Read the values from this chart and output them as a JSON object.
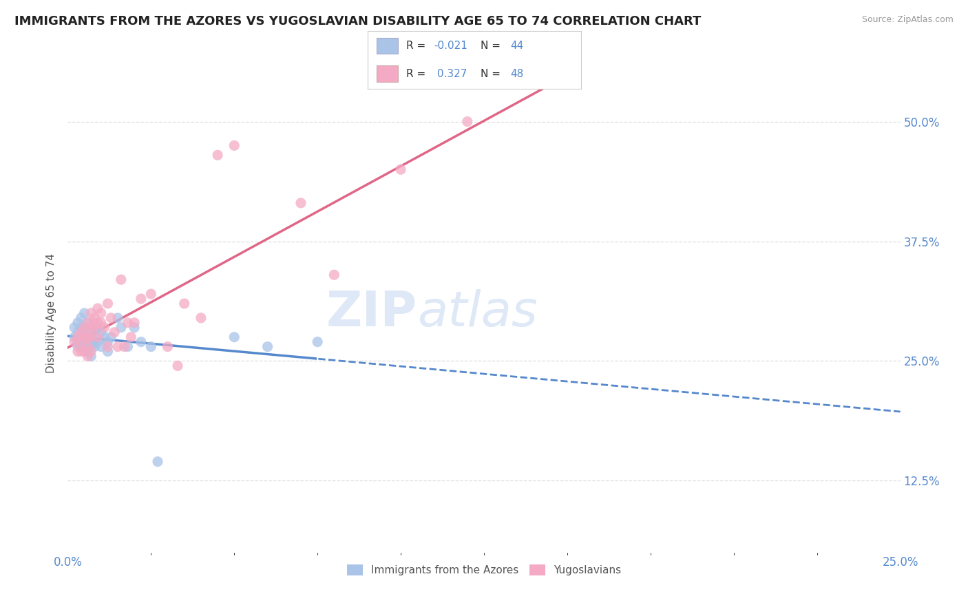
{
  "title": "IMMIGRANTS FROM THE AZORES VS YUGOSLAVIAN DISABILITY AGE 65 TO 74 CORRELATION CHART",
  "source": "Source: ZipAtlas.com",
  "ylabel": "Disability Age 65 to 74",
  "xlim": [
    0.0,
    0.25
  ],
  "ylim": [
    0.05,
    0.55
  ],
  "ytick_values": [
    0.125,
    0.25,
    0.375,
    0.5
  ],
  "xtick_values": [
    0.0,
    0.25
  ],
  "legend_labels": [
    "Immigrants from the Azores",
    "Yugoslavians"
  ],
  "r_blue": -0.021,
  "n_blue": 44,
  "r_pink": 0.327,
  "n_pink": 48,
  "blue_color": "#aac4e8",
  "pink_color": "#f4aac4",
  "blue_line_color": "#5588cc",
  "pink_line_color": "#e06688",
  "watermark_text": "ZIP",
  "watermark_text2": "atlas",
  "background_color": "#ffffff",
  "blue_scatter": [
    [
      0.002,
      0.285
    ],
    [
      0.002,
      0.275
    ],
    [
      0.003,
      0.29
    ],
    [
      0.003,
      0.28
    ],
    [
      0.003,
      0.27
    ],
    [
      0.003,
      0.265
    ],
    [
      0.004,
      0.295
    ],
    [
      0.004,
      0.285
    ],
    [
      0.004,
      0.275
    ],
    [
      0.004,
      0.27
    ],
    [
      0.004,
      0.265
    ],
    [
      0.005,
      0.3
    ],
    [
      0.005,
      0.285
    ],
    [
      0.005,
      0.275
    ],
    [
      0.005,
      0.265
    ],
    [
      0.006,
      0.29
    ],
    [
      0.006,
      0.28
    ],
    [
      0.006,
      0.27
    ],
    [
      0.006,
      0.26
    ],
    [
      0.007,
      0.285
    ],
    [
      0.007,
      0.275
    ],
    [
      0.007,
      0.265
    ],
    [
      0.007,
      0.255
    ],
    [
      0.008,
      0.28
    ],
    [
      0.008,
      0.27
    ],
    [
      0.008,
      0.265
    ],
    [
      0.009,
      0.285
    ],
    [
      0.009,
      0.27
    ],
    [
      0.01,
      0.28
    ],
    [
      0.01,
      0.265
    ],
    [
      0.011,
      0.275
    ],
    [
      0.012,
      0.27
    ],
    [
      0.012,
      0.26
    ],
    [
      0.013,
      0.275
    ],
    [
      0.015,
      0.295
    ],
    [
      0.016,
      0.285
    ],
    [
      0.018,
      0.265
    ],
    [
      0.02,
      0.285
    ],
    [
      0.022,
      0.27
    ],
    [
      0.025,
      0.265
    ],
    [
      0.027,
      0.145
    ],
    [
      0.05,
      0.275
    ],
    [
      0.06,
      0.265
    ],
    [
      0.075,
      0.27
    ]
  ],
  "pink_scatter": [
    [
      0.002,
      0.27
    ],
    [
      0.003,
      0.275
    ],
    [
      0.003,
      0.26
    ],
    [
      0.004,
      0.28
    ],
    [
      0.004,
      0.27
    ],
    [
      0.004,
      0.26
    ],
    [
      0.005,
      0.285
    ],
    [
      0.005,
      0.275
    ],
    [
      0.005,
      0.26
    ],
    [
      0.006,
      0.29
    ],
    [
      0.006,
      0.275
    ],
    [
      0.006,
      0.265
    ],
    [
      0.006,
      0.255
    ],
    [
      0.007,
      0.3
    ],
    [
      0.007,
      0.285
    ],
    [
      0.007,
      0.275
    ],
    [
      0.007,
      0.26
    ],
    [
      0.008,
      0.295
    ],
    [
      0.008,
      0.285
    ],
    [
      0.008,
      0.29
    ],
    [
      0.009,
      0.305
    ],
    [
      0.009,
      0.29
    ],
    [
      0.009,
      0.275
    ],
    [
      0.01,
      0.3
    ],
    [
      0.01,
      0.29
    ],
    [
      0.011,
      0.285
    ],
    [
      0.012,
      0.31
    ],
    [
      0.012,
      0.265
    ],
    [
      0.013,
      0.295
    ],
    [
      0.014,
      0.28
    ],
    [
      0.015,
      0.265
    ],
    [
      0.016,
      0.335
    ],
    [
      0.017,
      0.265
    ],
    [
      0.018,
      0.29
    ],
    [
      0.019,
      0.275
    ],
    [
      0.02,
      0.29
    ],
    [
      0.022,
      0.315
    ],
    [
      0.025,
      0.32
    ],
    [
      0.03,
      0.265
    ],
    [
      0.033,
      0.245
    ],
    [
      0.035,
      0.31
    ],
    [
      0.04,
      0.295
    ],
    [
      0.045,
      0.465
    ],
    [
      0.05,
      0.475
    ],
    [
      0.07,
      0.415
    ],
    [
      0.08,
      0.34
    ],
    [
      0.1,
      0.45
    ],
    [
      0.12,
      0.5
    ]
  ]
}
